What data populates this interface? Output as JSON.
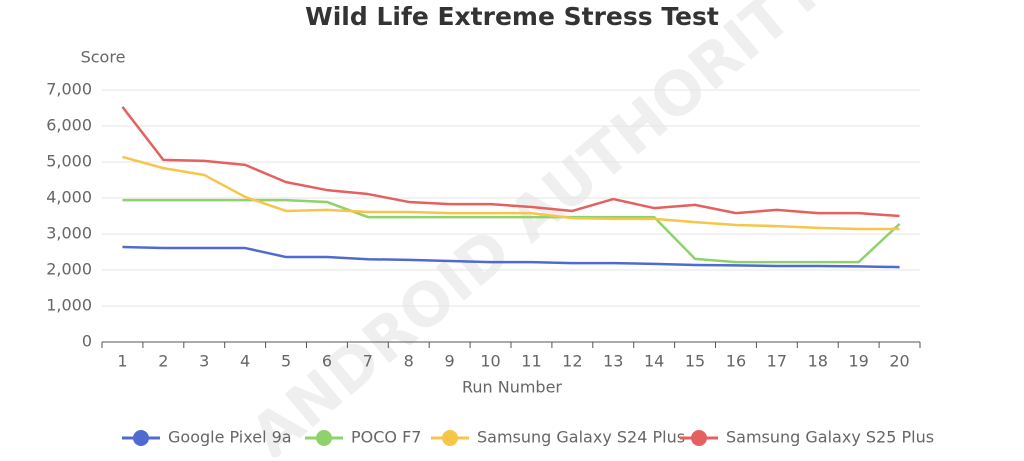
{
  "chart_data": {
    "type": "line",
    "title": "Wild Life Extreme Stress Test",
    "watermark": "ANDROID AUTHORITY",
    "x_label": "Run Number",
    "y_label": "Score",
    "categories": [
      "1",
      "2",
      "3",
      "4",
      "5",
      "6",
      "7",
      "8",
      "9",
      "10",
      "11",
      "12",
      "13",
      "14",
      "15",
      "16",
      "17",
      "18",
      "19",
      "20"
    ],
    "series": [
      {
        "name": "Google Pixel 9a",
        "color": "#4f6bd1",
        "values": [
          2640,
          2610,
          2610,
          2610,
          2360,
          2360,
          2300,
          2280,
          2250,
          2220,
          2220,
          2190,
          2190,
          2170,
          2140,
          2130,
          2110,
          2110,
          2100,
          2080
        ]
      },
      {
        "name": "POCO F7",
        "color": "#8fd16b",
        "values": [
          3940,
          3940,
          3940,
          3940,
          3940,
          3890,
          3470,
          3470,
          3470,
          3470,
          3470,
          3470,
          3470,
          3470,
          2310,
          2220,
          2220,
          2220,
          2220,
          3280
        ]
      },
      {
        "name": "Samsung Galaxy S24 Plus",
        "color": "#f7c548",
        "values": [
          5140,
          4830,
          4640,
          4030,
          3640,
          3670,
          3610,
          3610,
          3580,
          3580,
          3580,
          3440,
          3420,
          3420,
          3330,
          3250,
          3220,
          3170,
          3140,
          3140
        ]
      },
      {
        "name": "Samsung Galaxy S25 Plus",
        "color": "#e5605e",
        "values": [
          6530,
          5060,
          5030,
          4920,
          4440,
          4220,
          4110,
          3890,
          3830,
          3830,
          3750,
          3640,
          3970,
          3720,
          3810,
          3580,
          3670,
          3580,
          3580,
          3500
        ]
      }
    ],
    "ylim": [
      0,
      7000
    ],
    "yticks": [
      0,
      {
        "value": 1000,
        "label": "1,000"
      },
      {
        "value": 2000,
        "label": "2,000"
      },
      {
        "value": 3000,
        "label": "3,000"
      },
      {
        "value": 4000,
        "label": "4,000"
      },
      {
        "value": 5000,
        "label": "5,000"
      },
      {
        "value": 6000,
        "label": "6,000"
      },
      {
        "value": 7000,
        "label": "7,000"
      }
    ],
    "grid": true,
    "legend": "bottom"
  }
}
